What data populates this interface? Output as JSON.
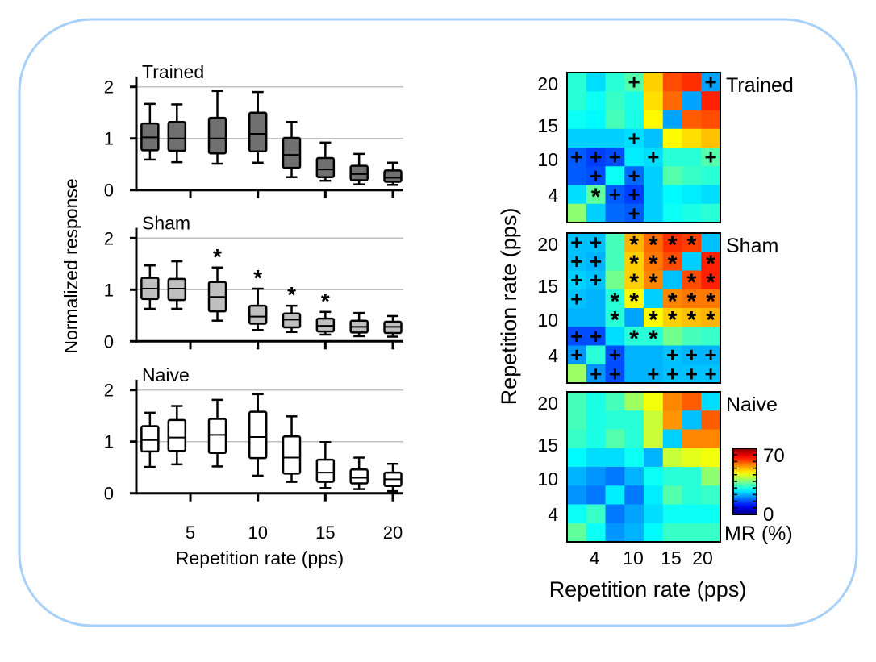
{
  "chart_data": [
    {
      "type": "box",
      "ylabel": "Normalized response",
      "xlabel": "Repetition rate (pps)",
      "xticks": [
        5,
        10,
        15,
        20
      ],
      "yticks": [
        0,
        1,
        2
      ],
      "ylim": [
        0,
        2.1
      ],
      "xlim": [
        0,
        21
      ],
      "grid": "horizontal at 1 and 2",
      "x": [
        2,
        4,
        7,
        10,
        12.5,
        15,
        17.5,
        20
      ],
      "panels": [
        {
          "title": "Trained",
          "fill": "#707070",
          "boxes": [
            [
              0.59,
              0.77,
              1.02,
              1.29,
              1.67
            ],
            [
              0.54,
              0.76,
              1.0,
              1.32,
              1.66
            ],
            [
              0.51,
              0.71,
              1.0,
              1.4,
              1.92
            ],
            [
              0.53,
              0.75,
              1.09,
              1.5,
              1.9
            ],
            [
              0.25,
              0.43,
              0.68,
              1.01,
              1.32
            ],
            [
              0.18,
              0.25,
              0.4,
              0.62,
              0.92
            ],
            [
              0.11,
              0.19,
              0.31,
              0.47,
              0.7
            ],
            [
              0.1,
              0.16,
              0.24,
              0.38,
              0.53
            ]
          ],
          "stars": [
            false,
            false,
            false,
            false,
            false,
            false,
            false,
            false
          ]
        },
        {
          "title": "Sham",
          "fill": "#c0c0c0",
          "boxes": [
            [
              0.63,
              0.82,
              1.02,
              1.23,
              1.47
            ],
            [
              0.63,
              0.8,
              1.02,
              1.21,
              1.55
            ],
            [
              0.4,
              0.58,
              0.86,
              1.15,
              1.43
            ],
            [
              0.22,
              0.34,
              0.48,
              0.69,
              1.02
            ],
            [
              0.18,
              0.27,
              0.42,
              0.54,
              0.69
            ],
            [
              0.13,
              0.19,
              0.3,
              0.44,
              0.57
            ],
            [
              0.1,
              0.17,
              0.28,
              0.4,
              0.55
            ],
            [
              0.09,
              0.16,
              0.28,
              0.38,
              0.49
            ]
          ],
          "stars": [
            false,
            false,
            true,
            true,
            true,
            true,
            false,
            false
          ]
        },
        {
          "title": "Naive",
          "fill": "#ffffff",
          "boxes": [
            [
              0.51,
              0.81,
              1.03,
              1.3,
              1.56
            ],
            [
              0.56,
              0.82,
              1.08,
              1.42,
              1.69
            ],
            [
              0.52,
              0.78,
              1.13,
              1.44,
              1.81
            ],
            [
              0.34,
              0.68,
              1.09,
              1.58,
              1.92
            ],
            [
              0.22,
              0.38,
              0.69,
              1.1,
              1.49
            ],
            [
              0.1,
              0.22,
              0.4,
              0.65,
              0.99
            ],
            [
              0.08,
              0.19,
              0.3,
              0.46,
              0.69
            ],
            [
              0.04,
              0.14,
              0.27,
              0.4,
              0.57
            ]
          ],
          "stars": [
            false,
            false,
            false,
            false,
            false,
            false,
            false,
            false
          ]
        }
      ]
    },
    {
      "type": "heatmap",
      "xlabel": "Repetition rate (pps)",
      "ylabel": "Repetition rate (pps)",
      "xticks": [
        "4",
        "10",
        "15",
        "20"
      ],
      "yticks": [
        "20",
        "15",
        "10",
        "4"
      ],
      "colormap": "jet",
      "colorbar": {
        "label": "MR (%)",
        "min": 0,
        "max": 70,
        "min_label": "0",
        "max_label": "70"
      },
      "panels": [
        {
          "title": "Trained",
          "values": [
            [
              29,
              24,
              29,
              32,
              47,
              56,
              58,
              20
            ],
            [
              29,
              27,
              30,
              28,
              46,
              54,
              20,
              59
            ],
            [
              27,
              26,
              31,
              28,
              44,
              20,
              55,
              56
            ],
            [
              23,
              23,
              23,
              24,
              22,
              44,
              46,
              48
            ],
            [
              15,
              13,
              14,
              25,
              24,
              29,
              29,
              32
            ],
            [
              15,
              14,
              27,
              16,
              23,
              32,
              30,
              29
            ],
            [
              24,
              33,
              15,
              13,
              23,
              26,
              25,
              24
            ],
            [
              36,
              23,
              16,
              15,
              23,
              27,
              28,
              29
            ]
          ],
          "marks": [
            [
              "",
              "",
              "",
              "+",
              "",
              "",
              "",
              "+"
            ],
            [
              "",
              "",
              "",
              "",
              "",
              "",
              "",
              ""
            ],
            [
              "",
              "",
              "",
              "",
              "",
              "",
              "",
              ""
            ],
            [
              "",
              "",
              "",
              "+",
              "",
              "",
              "",
              ""
            ],
            [
              "+",
              "+",
              "+",
              "",
              "+",
              "",
              "",
              "+"
            ],
            [
              "",
              "+",
              "",
              "+",
              "",
              "",
              "",
              ""
            ],
            [
              "",
              "*",
              "+",
              "+",
              "",
              "",
              "",
              ""
            ],
            [
              "",
              "",
              "",
              "+",
              "",
              "",
              "",
              ""
            ]
          ]
        },
        {
          "title": "Sham",
          "values": [
            [
              22,
              22,
              31,
              49,
              54,
              58,
              57,
              22
            ],
            [
              22,
              21,
              31,
              47,
              53,
              56,
              23,
              59
            ],
            [
              23,
              22,
              34,
              47,
              52,
              22,
              56,
              59
            ],
            [
              22,
              21,
              29,
              44,
              23,
              52,
              53,
              53
            ],
            [
              21,
              21,
              29,
              20,
              44,
              47,
              48,
              49
            ],
            [
              14,
              14,
              24,
              29,
              29,
              34,
              31,
              30
            ],
            [
              19,
              29,
              14,
              21,
              21,
              22,
              21,
              21
            ],
            [
              37,
              19,
              14,
              21,
              21,
              22,
              22,
              22
            ]
          ],
          "marks": [
            [
              "+",
              "+",
              "",
              "*",
              "*",
              "*",
              "*",
              ""
            ],
            [
              "+",
              "+",
              "",
              "*",
              "*",
              "*",
              "",
              "*"
            ],
            [
              "+",
              "+",
              "",
              "*",
              "*",
              "",
              "*",
              "*"
            ],
            [
              "+",
              "",
              "*",
              "*",
              "",
              "*",
              "*",
              "*"
            ],
            [
              "",
              "",
              "*",
              "",
              "*",
              "*",
              "*",
              "*"
            ],
            [
              "+",
              "+",
              "",
              "*",
              "*",
              "",
              "",
              ""
            ],
            [
              "+",
              "",
              "+",
              "",
              "",
              "+",
              "+",
              "+"
            ],
            [
              "",
              "+",
              "+",
              "",
              "+",
              "+",
              "+",
              "+"
            ]
          ]
        },
        {
          "title": "Naive",
          "values": [
            [
              31,
              28,
              31,
              37,
              43,
              52,
              55,
              24
            ],
            [
              31,
              28,
              29,
              29,
              40,
              51,
              22,
              55
            ],
            [
              30,
              28,
              32,
              29,
              40,
              23,
              52,
              52
            ],
            [
              26,
              24,
              24,
              27,
              21,
              40,
              42,
              43
            ],
            [
              21,
              19,
              17,
              21,
              27,
              29,
              29,
              36
            ],
            [
              19,
              17,
              25,
              17,
              25,
              32,
              29,
              30
            ],
            [
              27,
              30,
              17,
              20,
              24,
              27,
              27,
              27
            ],
            [
              33,
              27,
              19,
              21,
              26,
              30,
              30,
              30
            ]
          ],
          "marks": [
            [
              "",
              "",
              "",
              "",
              "",
              "",
              "",
              ""
            ],
            [
              "",
              "",
              "",
              "",
              "",
              "",
              "",
              ""
            ],
            [
              "",
              "",
              "",
              "",
              "",
              "",
              "",
              ""
            ],
            [
              "",
              "",
              "",
              "",
              "",
              "",
              "",
              ""
            ],
            [
              "",
              "",
              "",
              "",
              "",
              "",
              "",
              ""
            ],
            [
              "",
              "",
              "",
              "",
              "",
              "",
              "",
              ""
            ],
            [
              "",
              "",
              "",
              "",
              "",
              "",
              "",
              ""
            ],
            [
              "",
              "",
              "",
              "",
              "",
              "",
              "",
              ""
            ]
          ]
        }
      ]
    }
  ],
  "colors": {
    "frame": "#a8d0f8",
    "grid": "#c0c0c0"
  }
}
